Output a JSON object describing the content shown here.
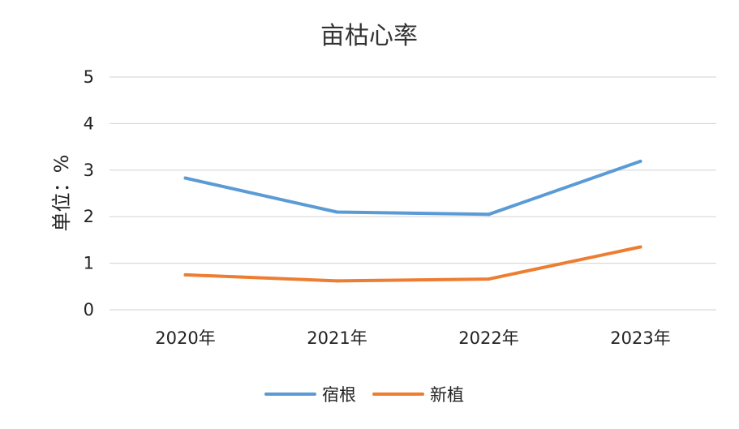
{
  "chart_data": {
    "type": "line",
    "title": "亩枯心率",
    "ylabel": "单位：%",
    "xlabel": "",
    "categories": [
      "2020年",
      "2021年",
      "2022年",
      "2023年"
    ],
    "ylim": [
      0,
      5
    ],
    "yticks": [
      "0",
      "1",
      "2",
      "3",
      "4",
      "5"
    ],
    "grid": true,
    "legend": "bottom",
    "series": [
      {
        "name": "宿根",
        "color": "#5b9bd5",
        "values": [
          2.83,
          2.1,
          2.05,
          3.19
        ]
      },
      {
        "name": "新植",
        "color": "#ed7d31",
        "values": [
          0.75,
          0.62,
          0.66,
          1.35
        ]
      }
    ]
  }
}
